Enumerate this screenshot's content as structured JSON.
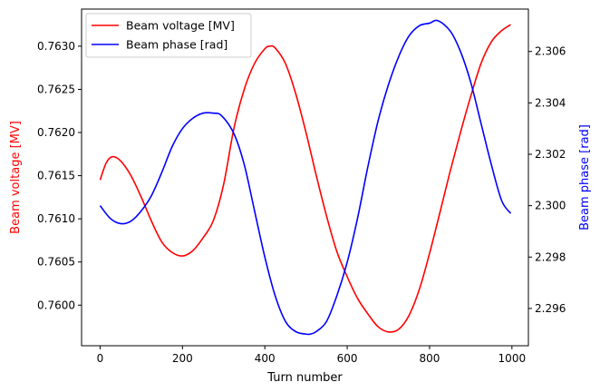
{
  "chart_data": {
    "type": "line",
    "xlabel": "Turn number",
    "ylabel_left": "Beam voltage [MV]",
    "ylabel_right": "Beam phase [rad]",
    "xlim": [
      -45,
      1040
    ],
    "ylim_left": [
      0.75953,
      0.76343
    ],
    "ylim_right": [
      2.29455,
      2.30765
    ],
    "x_ticks": [
      0,
      200,
      400,
      600,
      800,
      1000
    ],
    "y_ticks_left": [
      0.76,
      0.7605,
      0.761,
      0.7615,
      0.762,
      0.7625,
      0.763
    ],
    "y_ticks_right": [
      2.296,
      2.298,
      2.3,
      2.302,
      2.304,
      2.306
    ],
    "grid": false,
    "legend_position": "top-left",
    "colors": {
      "voltage": "#ff0000",
      "phase": "#0000ff"
    },
    "series": [
      {
        "name": "Beam voltage [MV]",
        "axis": "left",
        "color": "#ff0000",
        "x": [
          0,
          15,
          30,
          50,
          75,
          100,
          125,
          150,
          175,
          200,
          225,
          250,
          275,
          300,
          325,
          350,
          375,
          400,
          412,
          425,
          450,
          475,
          500,
          525,
          550,
          575,
          600,
          625,
          650,
          675,
          700,
          725,
          750,
          775,
          800,
          825,
          850,
          875,
          900,
          925,
          950,
          975,
          997
        ],
        "y": [
          0.76145,
          0.76165,
          0.76172,
          0.76167,
          0.7615,
          0.76125,
          0.76097,
          0.76073,
          0.76061,
          0.76057,
          0.76063,
          0.76078,
          0.76098,
          0.7614,
          0.76205,
          0.7625,
          0.7628,
          0.76297,
          0.763,
          0.76298,
          0.7628,
          0.76245,
          0.762,
          0.7615,
          0.76103,
          0.76062,
          0.76033,
          0.76008,
          0.7599,
          0.75975,
          0.75969,
          0.75972,
          0.75988,
          0.76018,
          0.7606,
          0.76107,
          0.76155,
          0.762,
          0.76242,
          0.7628,
          0.76305,
          0.76318,
          0.76325
        ]
      },
      {
        "name": "Beam phase [rad]",
        "axis": "right",
        "color": "#0000ff",
        "x": [
          0,
          25,
          50,
          75,
          100,
          125,
          150,
          175,
          200,
          225,
          250,
          275,
          295,
          325,
          350,
          375,
          400,
          425,
          450,
          475,
          500,
          510,
          525,
          550,
          575,
          600,
          625,
          650,
          675,
          700,
          725,
          750,
          775,
          800,
          820,
          850,
          875,
          900,
          925,
          950,
          975,
          997
        ],
        "y": [
          2.3,
          2.2995,
          2.2993,
          2.2994,
          2.2998,
          2.3004,
          2.3013,
          2.3023,
          2.303,
          2.3034,
          2.3036,
          2.3036,
          2.3035,
          2.3028,
          2.3016,
          2.2998,
          2.298,
          2.2965,
          2.2955,
          2.2951,
          2.295,
          2.295,
          2.2951,
          2.2955,
          2.2965,
          2.2978,
          2.2995,
          2.3015,
          2.3033,
          2.3047,
          2.3058,
          2.3066,
          2.307,
          2.3071,
          2.3072,
          2.3068,
          2.306,
          2.3048,
          2.3032,
          2.3016,
          2.3002,
          2.2997
        ]
      }
    ]
  }
}
